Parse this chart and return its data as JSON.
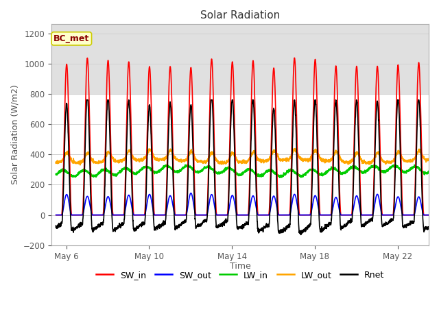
{
  "title": "Solar Radiation",
  "xlabel": "Time",
  "ylabel": "Solar Radiation (W/m2)",
  "ylim": [
    -200,
    1260
  ],
  "yticks": [
    -200,
    0,
    200,
    400,
    600,
    800,
    1000,
    1200
  ],
  "x_tick_labels": [
    "May 6",
    "May 10",
    "May 14",
    "May 18",
    "May 22"
  ],
  "x_tick_positions": [
    0.5,
    4.5,
    8.5,
    12.5,
    16.5
  ],
  "station_label": "BC_met",
  "series_colors": {
    "SW_in": "#ff0000",
    "SW_out": "#0000ff",
    "LW_in": "#00cc00",
    "LW_out": "#ffa500",
    "Rnet": "#000000"
  },
  "n_days": 18.0,
  "points_per_day": 144,
  "background_band": [
    800,
    1260
  ],
  "band_color": "#e0e0e0",
  "legend_entries": [
    "SW_in",
    "SW_out",
    "LW_in",
    "LW_out",
    "Rnet"
  ],
  "legend_colors": [
    "#ff0000",
    "#0000ff",
    "#00cc00",
    "#ffa500",
    "#000000"
  ],
  "fig_width": 6.4,
  "fig_height": 4.8,
  "dpi": 100
}
